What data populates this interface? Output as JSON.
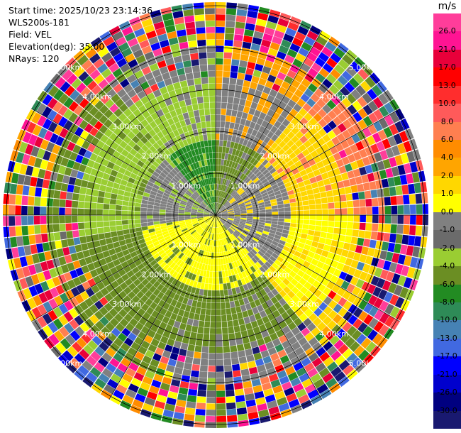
{
  "header": {
    "start_time": "Start time: 2025/10/23 23:14:36",
    "station": "WLS200s-181",
    "field": "Field: VEL",
    "elevation": "Elevation(deg): 35.00",
    "nrays": "NRays: 120"
  },
  "chart_data": {
    "type": "heatmap",
    "projection": "polar-ppi",
    "rings_km": [
      1,
      2,
      3,
      4,
      5
    ],
    "ring_labels": [
      {
        "text": "1.00km",
        "bearing": "NW"
      },
      {
        "text": "1.00km",
        "bearing": "NE"
      },
      {
        "text": "1.00km",
        "bearing": "SW"
      },
      {
        "text": "1.00km",
        "bearing": "SE"
      },
      {
        "text": "2.00km",
        "bearing": "NW"
      },
      {
        "text": "2.00km",
        "bearing": "NE"
      },
      {
        "text": "2.00km",
        "bearing": "SW"
      },
      {
        "text": "2.00km",
        "bearing": "SE"
      },
      {
        "text": "3.00km",
        "bearing": "NW"
      },
      {
        "text": "3.00km",
        "bearing": "NE"
      },
      {
        "text": "3.00km",
        "bearing": "SW"
      },
      {
        "text": "3.00km",
        "bearing": "SE"
      },
      {
        "text": "4.00km",
        "bearing": "NW"
      },
      {
        "text": "4.00km",
        "bearing": "NE"
      },
      {
        "text": "4.00km",
        "bearing": "SW"
      },
      {
        "text": "4.00km",
        "bearing": "SE"
      },
      {
        "text": "5.00km",
        "bearing": "NW"
      },
      {
        "text": "5.00km",
        "bearing": "NE"
      },
      {
        "text": "5.00km",
        "bearing": "SW"
      },
      {
        "text": "5.00km",
        "bearing": "SE"
      }
    ],
    "max_range_km": 5.1,
    "nrays": 120,
    "field": "VEL",
    "units": "m/s",
    "colorbar": {
      "title": "m/s",
      "ticks": [
        "26.0",
        "21.0",
        "17.0",
        "13.0",
        "10.0",
        "8.0",
        "6.0",
        "4.0",
        "2.0",
        "1.0",
        "0.0",
        "-1.0",
        "-2.0",
        "-4.0",
        "-6.0",
        "-8.0",
        "-10.0",
        "-13.0",
        "-17.0",
        "-21.0",
        "-26.0",
        "-30.0"
      ],
      "colors": [
        "#ff3d9a",
        "#ff1493",
        "#e8003a",
        "#ff0000",
        "#ff2d2d",
        "#ff5a5a",
        "#ff7f50",
        "#ff8c00",
        "#ffa500",
        "#ffd700",
        "#ffff00",
        "#808080",
        "#6b6b6b",
        "#9acd32",
        "#6b8e23",
        "#228b22",
        "#2e8b57",
        "#4682b4",
        "#4169e1",
        "#0000ff",
        "#0000cd",
        "#000080",
        "#191970"
      ]
    },
    "sectors": [
      {
        "from_az": 0,
        "to_az": 40,
        "near": "#6b8e23",
        "mid": "#808080",
        "far": "#ffa500"
      },
      {
        "from_az": 40,
        "to_az": 90,
        "near": "#808080",
        "mid": "#ffd700",
        "far": "#ff7f50"
      },
      {
        "from_az": 90,
        "to_az": 140,
        "near": "#808080",
        "mid": "#ffff00",
        "far": "#ffd700"
      },
      {
        "from_az": 140,
        "to_az": 200,
        "near": "#ffff00",
        "mid": "#6b8e23",
        "far": "#808080"
      },
      {
        "from_az": 200,
        "to_az": 260,
        "near": "#ffff00",
        "mid": "#6b8e23",
        "far": "#6b8e23"
      },
      {
        "from_az": 260,
        "to_az": 320,
        "near": "#808080",
        "mid": "#9acd32",
        "far": "#6b8e23"
      },
      {
        "from_az": 320,
        "to_az": 360,
        "near": "#228b22",
        "mid": "#9acd32",
        "far": "#808080"
      }
    ]
  }
}
